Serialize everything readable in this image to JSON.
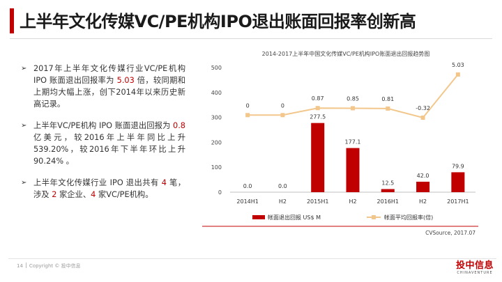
{
  "page": {
    "title": "上半年文化传媒VC/PE机构IPO退出账面回报率创新高"
  },
  "bullets": [
    {
      "parts": [
        {
          "text": "2017年上半年文化传媒行业VC/PE机构 IPO 账面退出回报率为 ",
          "hl": false
        },
        {
          "text": "5.03",
          "hl": true
        },
        {
          "text": " 倍，较同期和上期均大幅上涨，创下2014年以来历史新高记录。",
          "hl": false
        }
      ]
    },
    {
      "parts": [
        {
          "text": "上半年VC/PE机构 IPO 账面退出回报为 ",
          "hl": false
        },
        {
          "text": "0.8",
          "hl": true
        },
        {
          "text": " 亿美元，较2016年上半年同比上升 539.20%，较2016年下半年环比上升 90.24% 。",
          "hl": false
        }
      ]
    },
    {
      "parts": [
        {
          "text": "上半年文化传媒行业 IPO 退出共有 ",
          "hl": false
        },
        {
          "text": "4",
          "hl": true
        },
        {
          "text": " 笔，涉及 ",
          "hl": false
        },
        {
          "text": "2",
          "hl": true
        },
        {
          "text": " 家企业、",
          "hl": false
        },
        {
          "text": "4",
          "hl": true
        },
        {
          "text": " 家VC/PE机构。",
          "hl": false
        }
      ]
    }
  ],
  "chart_data": {
    "type": "bar",
    "title": "2014-2017上半年中国文化传媒VC/PE机构IPO账面退出回报趋势图",
    "categories": [
      "2014H1",
      "H2",
      "2015H1",
      "H2",
      "2016H1",
      "H2",
      "2017H1"
    ],
    "ylim": [
      0,
      500
    ],
    "yticks": [
      0,
      100,
      200,
      300,
      400,
      500
    ],
    "bar_labels": [
      "0.0",
      "0.0",
      "277.5",
      "177.1",
      "12.5",
      "42.0",
      "79.9"
    ],
    "line_labels": [
      "0",
      "0",
      "0.87",
      "0.85",
      "0.81",
      "-0.32",
      "5.03"
    ],
    "series": [
      {
        "name": "帐面退出回报 US$ M",
        "kind": "bar",
        "color": "#c00000",
        "values": [
          0.0,
          0.0,
          277.5,
          177.1,
          12.5,
          42.0,
          79.9
        ]
      },
      {
        "name": "帐面平均回报率(倍)",
        "kind": "line",
        "color": "#f3c78c",
        "values": [
          0,
          0,
          0.87,
          0.85,
          0.81,
          -0.32,
          5.03
        ]
      }
    ],
    "legend_position": "bottom",
    "source": "CVSource, 2017.07"
  },
  "footer": {
    "page_number": "14",
    "copyright": "Copyright © 投中信息",
    "logo_text": "投中信息",
    "logo_sub": "CHINAVENTURE"
  }
}
